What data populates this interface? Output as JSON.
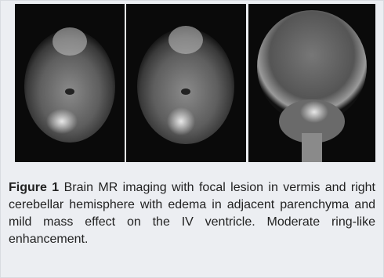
{
  "figure": {
    "label": "Figure 1",
    "caption": "Brain MR imaging with focal lesion in vermis and right cerebellar hemisphere with edema in adjacent parenchyma and mild mass effect on the IV ventricle. Moderate ring-like enhancement."
  }
}
